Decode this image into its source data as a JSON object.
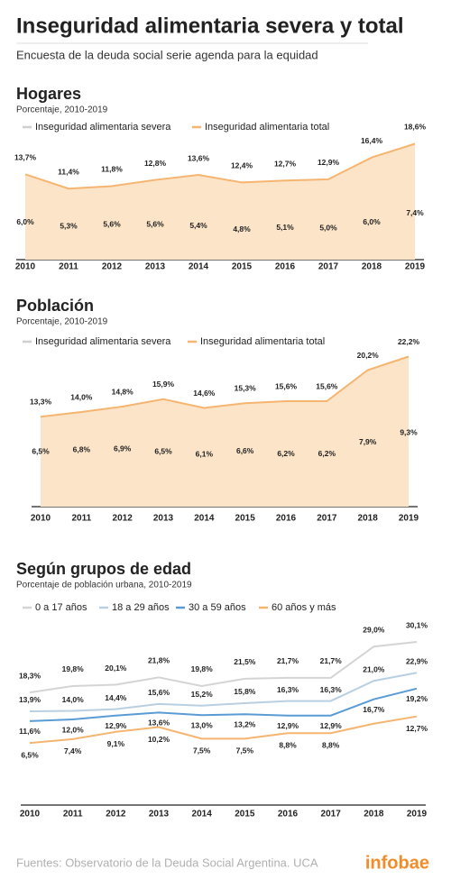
{
  "title": "Inseguridad alimentaria severa y total",
  "subtitle": "Encuesta de la deuda social serie agenda para la equidad",
  "source": "Fuentes: Observatorio de la Deuda Social Argentina. UCA",
  "logo": "infobae",
  "chart_data": [
    {
      "type": "area",
      "title": "Hogares",
      "subtitle": "Porcentaje, 2010-2019",
      "categories": [
        "2010",
        "2011",
        "2012",
        "2013",
        "2014",
        "2015",
        "2016",
        "2017",
        "2018",
        "2019"
      ],
      "ylim": [
        0,
        22
      ],
      "series": [
        {
          "name": "Inseguridad alimentaria severa",
          "color": "#cfcfcf",
          "values": [
            6.0,
            5.3,
            5.6,
            5.6,
            5.4,
            4.8,
            5.1,
            5.0,
            6.0,
            7.4
          ],
          "value_labels": [
            "6,0%",
            "5,3%",
            "5,6%",
            "5,6%",
            "5,4%",
            "4,8%",
            "5,1%",
            "5,0%",
            "6,0%",
            "7,4%"
          ]
        },
        {
          "name": "Inseguridad alimentaria total",
          "color": "#f5b570",
          "area_color": "#fbe4c8",
          "values": [
            13.7,
            11.4,
            11.8,
            12.8,
            13.6,
            12.4,
            12.7,
            12.9,
            16.4,
            18.6
          ],
          "value_labels": [
            "13,7%",
            "11,4%",
            "11,8%",
            "12,8%",
            "13,6%",
            "12,4%",
            "12,7%",
            "12,9%",
            "16,4%",
            "18,6%"
          ]
        }
      ]
    },
    {
      "type": "area",
      "title": "Población",
      "subtitle": "Porcentaje, 2010-2019",
      "categories": [
        "2010",
        "2011",
        "2012",
        "2013",
        "2014",
        "2015",
        "2016",
        "2017",
        "2018",
        "2019"
      ],
      "ylim": [
        0,
        24
      ],
      "series": [
        {
          "name": "Inseguridad alimentaria severa",
          "color": "#cfcfcf",
          "values": [
            6.5,
            6.8,
            6.9,
            6.5,
            6.1,
            6.6,
            6.2,
            6.2,
            7.9,
            9.3
          ],
          "value_labels": [
            "6,5%",
            "6,8%",
            "6,9%",
            "6,5%",
            "6,1%",
            "6,6%",
            "6,2%",
            "6,2%",
            "7,9%",
            "9,3%"
          ]
        },
        {
          "name": "Inseguridad alimentaria total",
          "color": "#f5b570",
          "area_color": "#fbe4c8",
          "values": [
            13.3,
            14.0,
            14.8,
            15.9,
            14.6,
            15.3,
            15.6,
            15.6,
            20.2,
            22.2
          ],
          "value_labels": [
            "13,3%",
            "14,0%",
            "14,8%",
            "15,9%",
            "14,6%",
            "15,3%",
            "15,6%",
            "15,6%",
            "20,2%",
            "22,2%"
          ]
        }
      ]
    },
    {
      "type": "line",
      "title": "Según grupos de edad",
      "subtitle": "Porcentaje de población urbana, 2010-2019",
      "categories": [
        "2010",
        "2011",
        "2012",
        "2013",
        "2014",
        "2015",
        "2016",
        "2017",
        "2018",
        "2019"
      ],
      "ylim": [
        -8,
        32
      ],
      "series": [
        {
          "name": "0 a 17 años",
          "color": "#d4d4d4",
          "values": [
            18.3,
            19.8,
            20.1,
            21.8,
            19.8,
            21.5,
            21.7,
            21.7,
            29.0,
            30.1
          ],
          "value_labels": [
            "18,3%",
            "19,8%",
            "20,1%",
            "21,8%",
            "19,8%",
            "21,5%",
            "21,7%",
            "21,7%",
            "29,0%",
            "30,1%"
          ]
        },
        {
          "name": "18 a 29 años",
          "color": "#b9cfe2",
          "values": [
            13.9,
            14.0,
            14.4,
            15.6,
            15.2,
            15.8,
            16.3,
            16.3,
            21.0,
            22.9
          ],
          "value_labels": [
            "13,9%",
            "14,0%",
            "14,4%",
            "15,6%",
            "15,2%",
            "15,8%",
            "16,3%",
            "16,3%",
            "21,0%",
            "22,9%"
          ]
        },
        {
          "name": "30 a 59 años",
          "color": "#5a9bd4",
          "values": [
            11.6,
            12.0,
            12.9,
            13.6,
            13.0,
            13.2,
            12.9,
            12.9,
            16.7,
            19.2
          ],
          "value_labels": [
            "11,6%",
            "12,0%",
            "12,9%",
            "13,6%",
            "13,0%",
            "13,2%",
            "12,9%",
            "12,9%",
            "16,7%",
            "19,2%"
          ]
        },
        {
          "name": "60 años y más",
          "color": "#f5b570",
          "values": [
            6.5,
            7.4,
            9.1,
            10.2,
            7.5,
            7.5,
            8.8,
            8.8,
            11.0,
            12.7
          ],
          "value_labels": [
            "6,5%",
            "7,4%",
            "9,1%",
            "10,2%",
            "7,5%",
            "7,5%",
            "8,8%",
            "8,8%",
            null,
            "12,7%"
          ]
        }
      ]
    }
  ]
}
